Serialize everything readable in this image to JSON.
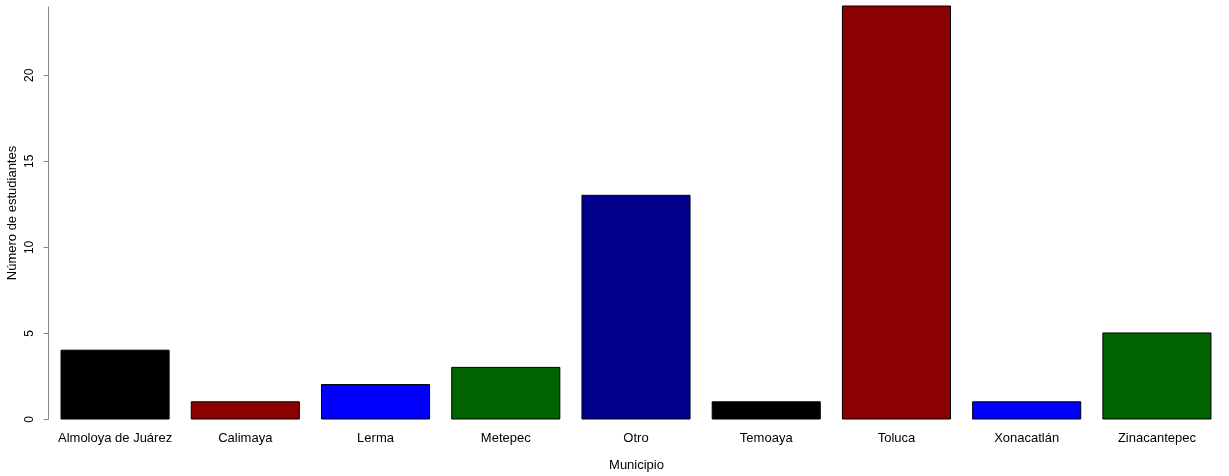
{
  "chart_data": {
    "type": "bar",
    "xlabel": "Municipio",
    "ylabel": "Número de estudiantes",
    "categories": [
      "Almoloya de Juárez",
      "Calimaya",
      "Lerma",
      "Metepec",
      "Otro",
      "Temoaya",
      "Toluca",
      "Xonacatlán",
      "Zinacantepec"
    ],
    "values": [
      4,
      1,
      2,
      3,
      13,
      1,
      24,
      1,
      5
    ],
    "colors": [
      "#000000",
      "#8b0000",
      "#0000ff",
      "#006400",
      "#00008b",
      "#000000",
      "#8b0000",
      "#0000ff",
      "#006400"
    ],
    "ylim": [
      0,
      24
    ],
    "yticks": [
      0,
      5,
      10,
      15,
      20
    ],
    "grid": false
  }
}
